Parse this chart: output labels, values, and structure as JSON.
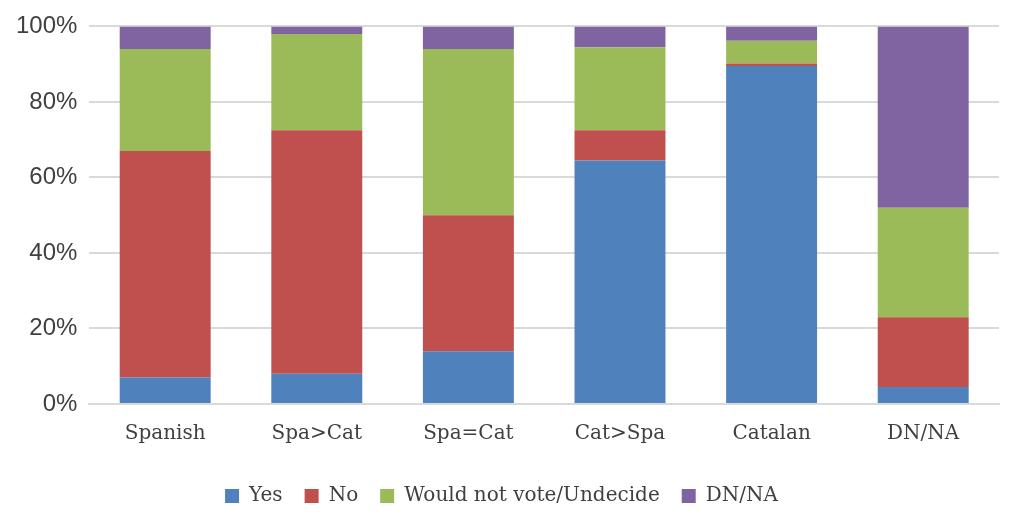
{
  "chart_data": {
    "type": "bar",
    "stacked": true,
    "categories": [
      "Spanish",
      "Spa>Cat",
      "Spa=Cat",
      "Cat>Spa",
      "Catalan",
      "DN/NA"
    ],
    "series": [
      {
        "name": "Yes",
        "color": "#4f81bd",
        "values": [
          7,
          8,
          14,
          64.5,
          89.5,
          4.5
        ]
      },
      {
        "name": "No",
        "color": "#c0504d",
        "values": [
          60,
          64.5,
          36,
          8,
          0.7,
          18.5
        ]
      },
      {
        "name": "Would not vote/Undecide",
        "color": "#9bbb59",
        "values": [
          27,
          25.5,
          44,
          22,
          6,
          29
        ]
      },
      {
        "name": "DN/NA",
        "color": "#8064a2",
        "values": [
          6,
          2,
          6,
          5.5,
          3.8,
          48
        ]
      }
    ],
    "ylim": [
      0,
      100
    ],
    "yticks": [
      {
        "value": 0,
        "label": "0%"
      },
      {
        "value": 20,
        "label": "20%"
      },
      {
        "value": 40,
        "label": "40%"
      },
      {
        "value": 60,
        "label": "60%"
      },
      {
        "value": 80,
        "label": "80%"
      },
      {
        "value": 100,
        "label": "100%"
      }
    ],
    "grid": "y",
    "legend": "bottom"
  }
}
